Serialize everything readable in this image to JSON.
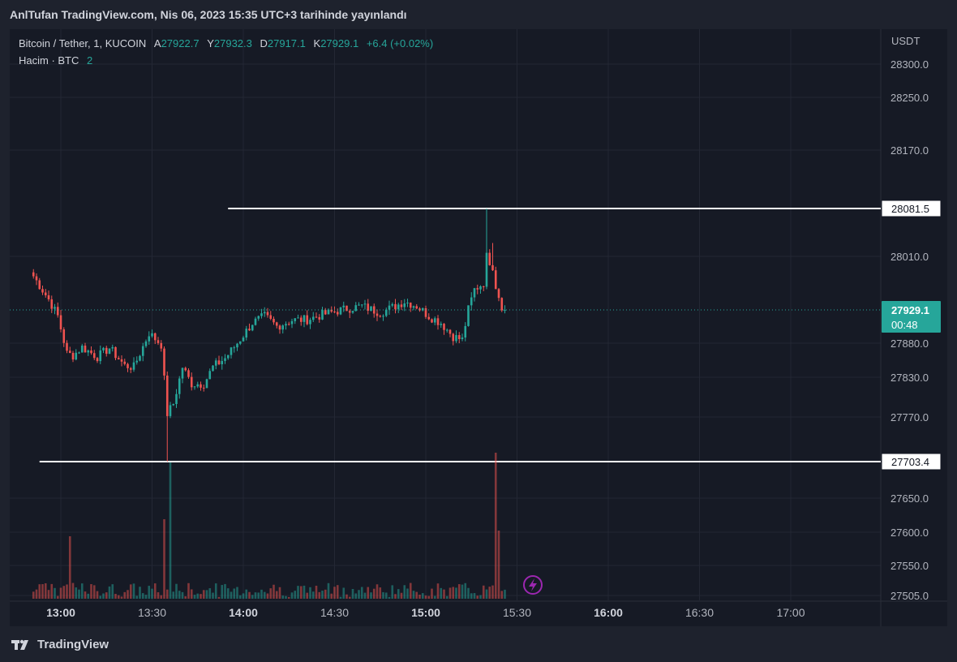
{
  "header": {
    "published": "AnlTufan TradingView.com, Nis 06, 2023 15:35 UTC+3 tarihinde yayınlandı"
  },
  "legend": {
    "symbol": "Bitcoin / Tether, 1, KUCOIN",
    "open_label": "A",
    "open": "27922.7",
    "high_label": "Y",
    "high": "27932.3",
    "low_label": "D",
    "low": "27917.1",
    "close_label": "K",
    "close": "27929.1",
    "change": "+6.4 (+0.02%)",
    "volume_label": "Hacim · BTC",
    "volume": "2"
  },
  "footer": {
    "brand": "TradingView",
    "logo_icon": "tradingview-logo-icon"
  },
  "colors": {
    "up": "#26a69a",
    "down": "#ef5350",
    "background": "#161a25",
    "grid": "#232734",
    "text": "#b2b5be",
    "level_line": "#ffffff"
  },
  "chart_data": {
    "type": "candlestick",
    "currency": "USDT",
    "y_ticks": [
      28300.0,
      28250.0,
      28170.0,
      28010.0,
      27880.0,
      27830.0,
      27770.0,
      27650.0,
      27600.0,
      27550.0,
      27505.0
    ],
    "y_tick_labels": [
      "28300.0",
      "28250.0",
      "28170.0",
      "28010.0",
      "27880.0",
      "27830.0",
      "27770.0",
      "27650.0",
      "27600.0",
      "27550.0",
      "27505.0"
    ],
    "x_tick_labels": [
      "13:00",
      "13:30",
      "14:00",
      "14:30",
      "15:00",
      "15:30",
      "16:00",
      "16:30",
      "17:00"
    ],
    "x_tick_bold": [
      true,
      false,
      true,
      false,
      true,
      false,
      true,
      false,
      false
    ],
    "ylim": [
      27505,
      28300
    ],
    "levels": [
      {
        "value": 28081.5,
        "label": "28081.5",
        "start_time": "13:55"
      },
      {
        "value": 27703.4,
        "label": "27703.4",
        "start_time": "12:53"
      }
    ],
    "last_price": {
      "value": 27929.1,
      "label": "27929.1",
      "countdown": "00:48"
    },
    "ohlc_anchors": [
      {
        "t": "12:51",
        "p": 27980
      },
      {
        "t": "12:56",
        "p": 27945
      },
      {
        "t": "12:59",
        "p": 27920
      },
      {
        "t": "13:02",
        "p": 27865
      },
      {
        "t": "13:04",
        "p": 27862
      },
      {
        "t": "13:07",
        "p": 27874
      },
      {
        "t": "13:12",
        "p": 27860
      },
      {
        "t": "13:16",
        "p": 27873
      },
      {
        "t": "13:21",
        "p": 27847
      },
      {
        "t": "13:24",
        "p": 27845
      },
      {
        "t": "13:29",
        "p": 27895
      },
      {
        "t": "13:33",
        "p": 27878
      },
      {
        "t": "13:35",
        "p": 27775
      },
      {
        "t": "13:37",
        "p": 27790
      },
      {
        "t": "13:40",
        "p": 27845
      },
      {
        "t": "13:43",
        "p": 27820
      },
      {
        "t": "13:47",
        "p": 27820
      },
      {
        "t": "13:50",
        "p": 27845
      },
      {
        "t": "13:54",
        "p": 27858
      },
      {
        "t": "13:58",
        "p": 27880
      },
      {
        "t": "14:03",
        "p": 27910
      },
      {
        "t": "14:07",
        "p": 27920
      },
      {
        "t": "14:11",
        "p": 27905
      },
      {
        "t": "14:16",
        "p": 27914
      },
      {
        "t": "14:21",
        "p": 27915
      },
      {
        "t": "14:26",
        "p": 27922
      },
      {
        "t": "14:33",
        "p": 27930
      },
      {
        "t": "14:39",
        "p": 27935
      },
      {
        "t": "14:45",
        "p": 27925
      },
      {
        "t": "14:50",
        "p": 27935
      },
      {
        "t": "14:53",
        "p": 27942
      },
      {
        "t": "14:57",
        "p": 27935
      },
      {
        "t": "15:01",
        "p": 27920
      },
      {
        "t": "15:05",
        "p": 27910
      },
      {
        "t": "15:09",
        "p": 27890
      },
      {
        "t": "15:12",
        "p": 27885
      },
      {
        "t": "15:14",
        "p": 27930
      },
      {
        "t": "15:16",
        "p": 27960
      },
      {
        "t": "15:19",
        "p": 27970
      },
      {
        "t": "15:20",
        "p": 28010
      },
      {
        "t": "15:22",
        "p": 27995
      },
      {
        "t": "15:23",
        "p": 27965
      },
      {
        "t": "15:25",
        "p": 27935
      },
      {
        "t": "15:26",
        "p": 27929
      }
    ],
    "volume_spikes": [
      {
        "t": "13:03",
        "v": 11
      },
      {
        "t": "13:34",
        "v": 14
      },
      {
        "t": "13:36",
        "v": 24
      },
      {
        "t": "15:23",
        "v": 34
      },
      {
        "t": "15:24",
        "v": 12
      }
    ]
  }
}
